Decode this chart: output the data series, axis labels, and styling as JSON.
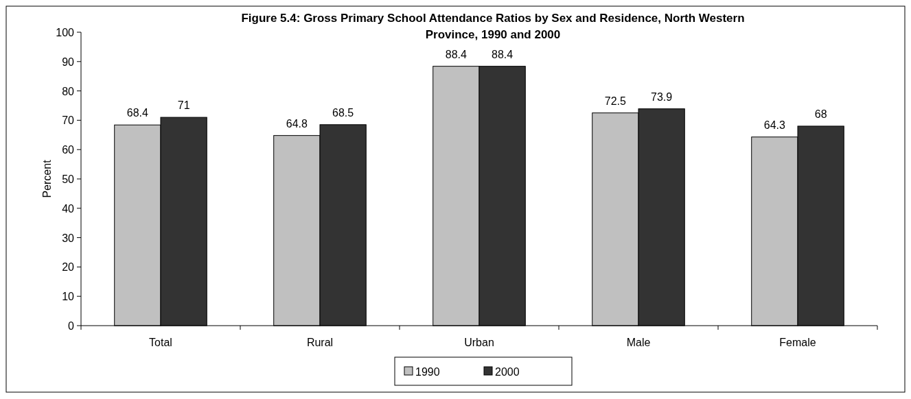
{
  "chart_data": {
    "type": "bar",
    "title": "Figure 5.4: Gross Primary School Attendance Ratios by Sex and Residence, North Western Province, 1990 and 2000",
    "ylabel": "Percent",
    "categories": [
      "Total",
      "Rural",
      "Urban",
      "Male",
      "Female"
    ],
    "series": [
      {
        "name": "1990",
        "color": "#c0c0c0",
        "values": [
          68.4,
          64.8,
          88.4,
          72.5,
          64.3
        ]
      },
      {
        "name": "2000",
        "color": "#333333",
        "values": [
          71,
          68.5,
          88.4,
          73.9,
          68
        ]
      }
    ],
    "ylim": [
      0,
      100
    ],
    "yticks": [
      0,
      10,
      20,
      30,
      40,
      50,
      60,
      70,
      80,
      90,
      100
    ],
    "data_labels": true,
    "legend": "bottom",
    "grid": false
  }
}
